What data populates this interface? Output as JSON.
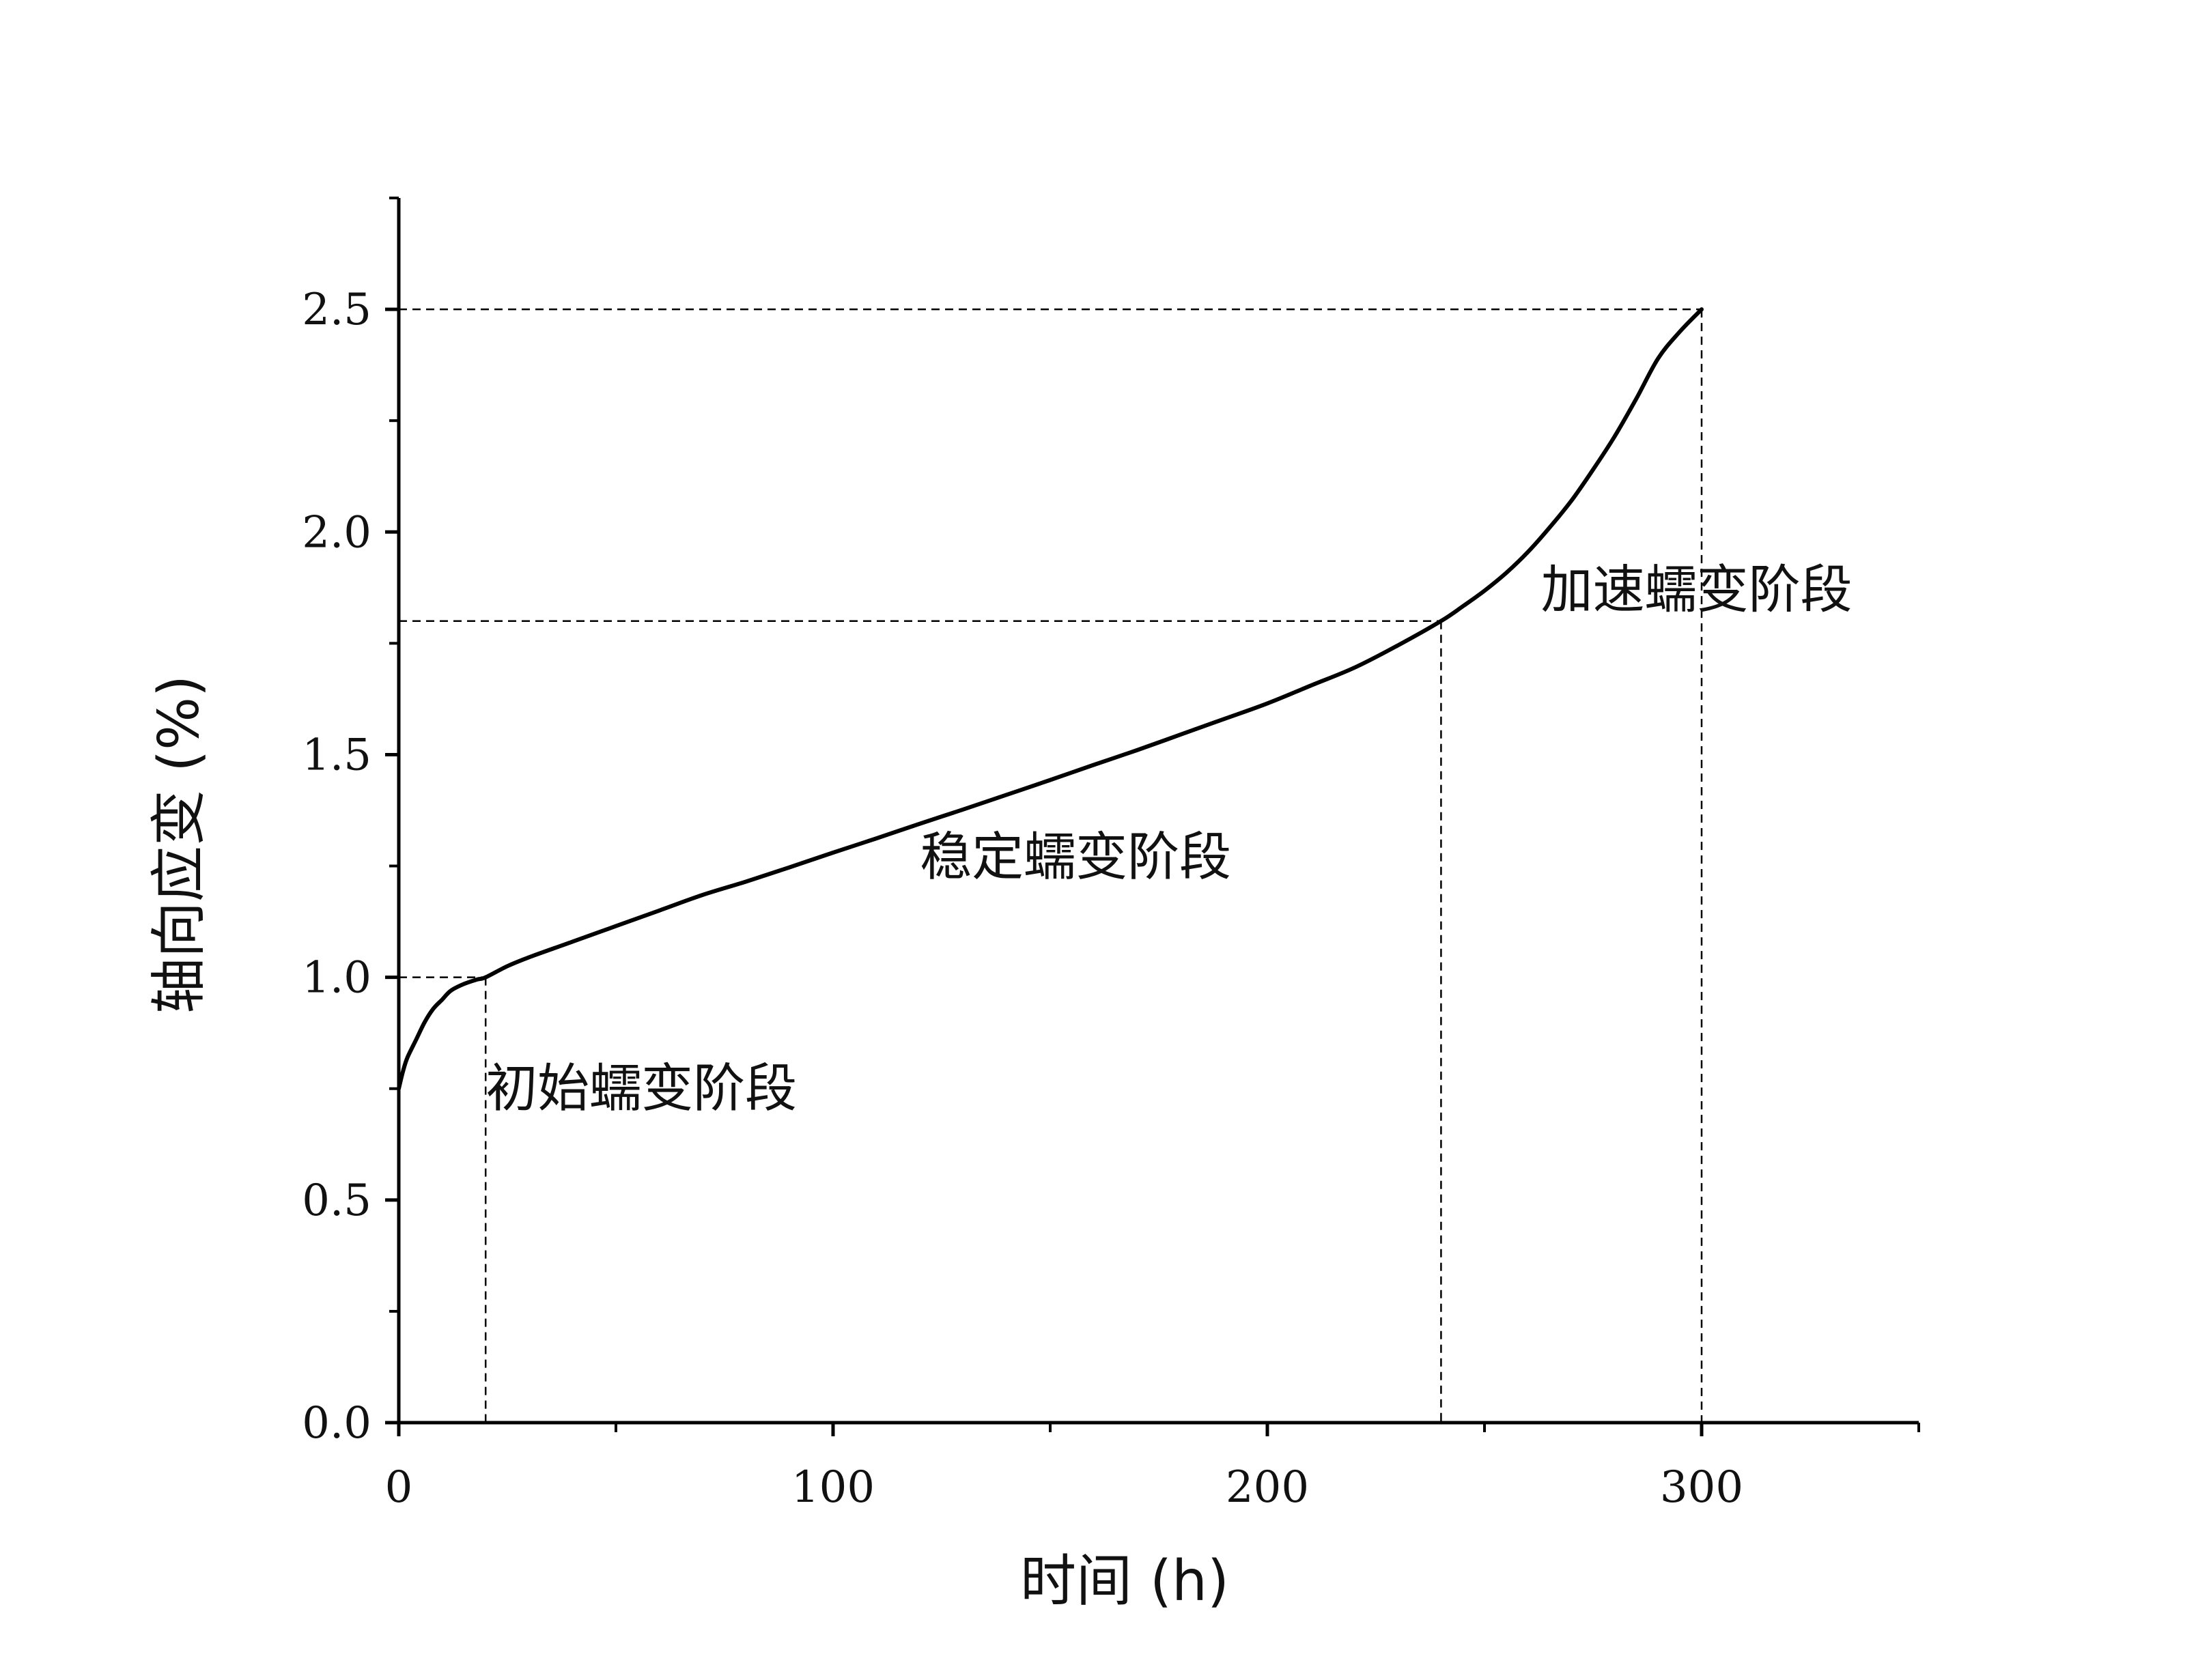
{
  "chart_data": {
    "type": "line",
    "xlabel": "时间 (h)",
    "ylabel": "轴向应变 (%)",
    "xlim": [
      0,
      350
    ],
    "ylim": [
      0,
      2.75
    ],
    "x_ticks": [
      "0",
      "100",
      "200",
      "300"
    ],
    "y_ticks": [
      "0.0",
      "0.5",
      "1.0",
      "1.5",
      "2.0",
      "2.5"
    ],
    "grid": false,
    "series": [
      {
        "x": [
          0,
          1,
          2,
          4,
          6,
          8,
          10,
          12,
          15,
          18,
          20,
          25,
          30,
          40,
          50,
          60,
          70,
          80,
          90,
          100,
          110,
          120,
          130,
          140,
          150,
          160,
          170,
          180,
          190,
          200,
          210,
          220,
          230,
          240,
          245,
          250,
          255,
          260,
          265,
          270,
          275,
          280,
          285,
          290,
          295,
          300
        ],
        "y": [
          0.75,
          0.79,
          0.82,
          0.86,
          0.9,
          0.93,
          0.95,
          0.97,
          0.985,
          0.995,
          1.0,
          1.025,
          1.045,
          1.08,
          1.115,
          1.15,
          1.185,
          1.215,
          1.247,
          1.28,
          1.312,
          1.345,
          1.377,
          1.41,
          1.443,
          1.477,
          1.51,
          1.545,
          1.58,
          1.615,
          1.655,
          1.695,
          1.745,
          1.8,
          1.833,
          1.868,
          1.908,
          1.955,
          2.01,
          2.07,
          2.14,
          2.215,
          2.3,
          2.39,
          2.45,
          2.5
        ]
      }
    ],
    "guides": [
      {
        "x": 20,
        "y": 1.0
      },
      {
        "x": 240,
        "y": 1.8
      },
      {
        "x": 300,
        "y": 2.5
      }
    ],
    "annotations": [
      {
        "text": "初始蠕变阶段",
        "x": 20,
        "y": 0.75
      },
      {
        "text": "稳定蠕变阶段",
        "x": 120,
        "y": 1.27
      },
      {
        "text": "加速蠕变阶段",
        "x": 263,
        "y": 1.87
      }
    ]
  }
}
